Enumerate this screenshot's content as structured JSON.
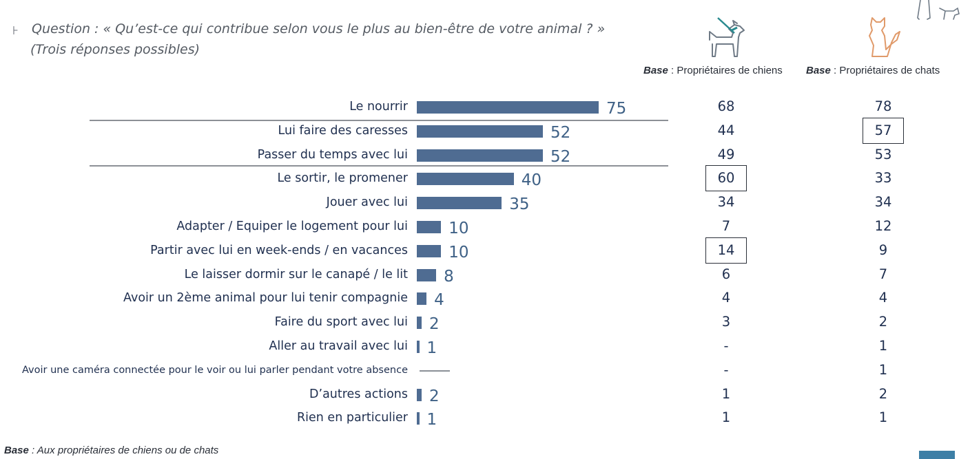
{
  "question": {
    "marker": "⊦",
    "line1": "Question : « Qu’est-ce qui contribue selon vous le plus au bien-être de votre animal ? »",
    "line2": "(Trois réponses possibles)"
  },
  "columns": {
    "dogs": {
      "base_label": "Base",
      "subtitle": " : Propriétaires de chiens"
    },
    "cats": {
      "base_label": "Base",
      "subtitle": " : Propriétaires de chats"
    }
  },
  "footer": {
    "base_label": "Base",
    "text": " : Aux propriétaires de chiens ou de chats"
  },
  "colors": {
    "bar": "#4f6c92",
    "value_text": "#3f6186",
    "label_text": "#1f2f4f"
  },
  "chart_data": {
    "type": "bar",
    "orientation": "horizontal",
    "categories": [
      "Le nourrir",
      "Lui faire des caresses",
      "Passer du temps avec lui",
      "Le sortir, le promener",
      "Jouer avec lui",
      "Adapter / Equiper le logement pour lui",
      "Partir avec lui en week-ends / en vacances",
      "Le laisser dormir sur le canapé / le lit",
      "Avoir un 2ème animal pour lui tenir compagnie",
      "Faire du sport avec lui",
      "Aller au travail avec lui",
      "Avoir une caméra connectée pour le voir ou lui parler pendant votre absence",
      "D’autres actions",
      "Rien en particulier"
    ],
    "values": [
      75,
      52,
      52,
      40,
      35,
      10,
      10,
      8,
      4,
      2,
      1,
      0,
      2,
      1
    ],
    "value_labels": [
      "75",
      "52",
      "52",
      "40",
      "35",
      "10",
      "10",
      "8",
      "4",
      "2",
      "1",
      "",
      "2",
      "1"
    ],
    "dogs": [
      "68",
      "44",
      "49",
      "60",
      "34",
      "7",
      "14",
      "6",
      "4",
      "3",
      "-",
      "-",
      "1",
      "1"
    ],
    "cats": [
      "78",
      "57",
      "53",
      "33",
      "34",
      "12",
      "9",
      "7",
      "4",
      "2",
      "1",
      "1",
      "2",
      "1"
    ],
    "highlighted": {
      "dogs": [
        3,
        6
      ],
      "cats": [
        1
      ]
    },
    "xlim": [
      0,
      75
    ]
  }
}
